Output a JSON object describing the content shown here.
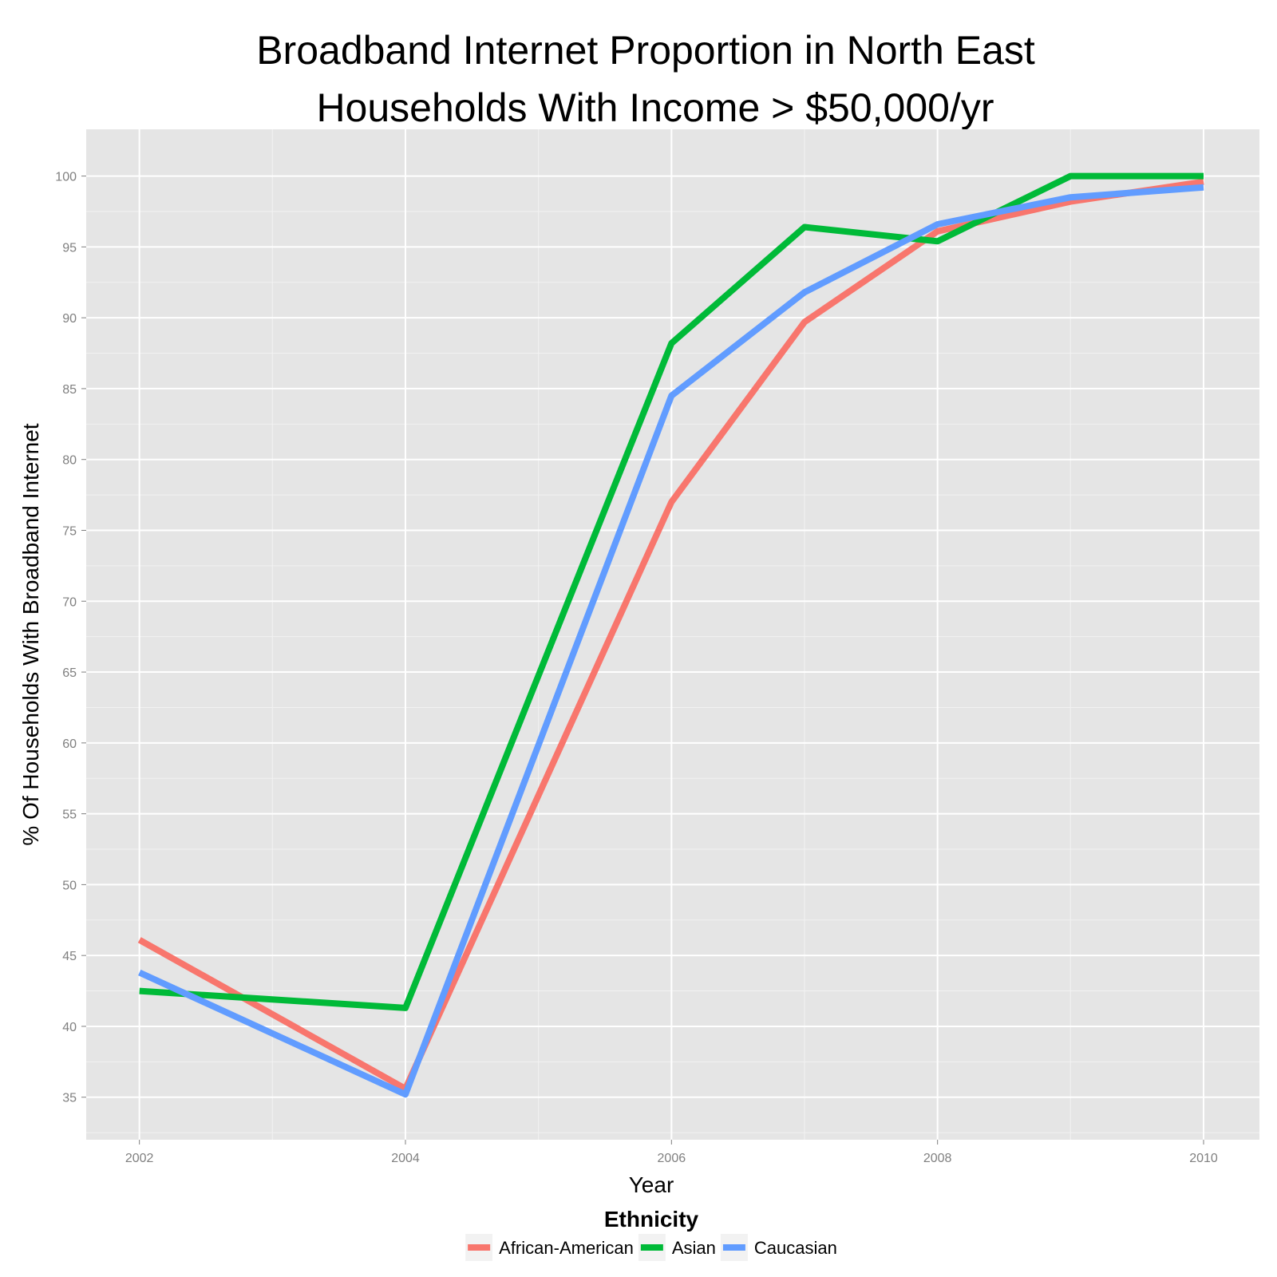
{
  "chart_data": {
    "type": "line",
    "title_lines": [
      "Broadband Internet Proportion in North East",
      "Households With Income > $50,000/yr"
    ],
    "xlabel": "Year",
    "ylabel": "% Of Households With Broadband Internet",
    "x": [
      2002,
      2004,
      2006,
      2007,
      2008,
      2009,
      2010
    ],
    "xticks": [
      2002,
      2004,
      2006,
      2008,
      2010
    ],
    "xlim": [
      2001.6,
      2010.42
    ],
    "yticks": [
      35,
      40,
      45,
      50,
      55,
      60,
      65,
      70,
      75,
      80,
      85,
      90,
      95,
      100
    ],
    "ylim": [
      32.0,
      103.3
    ],
    "grid": true,
    "legend_position": "bottom",
    "legend_title": "Ethnicity",
    "series": [
      {
        "name": "African-American",
        "color": "#F8766D",
        "values": [
          46.1,
          35.6,
          77.0,
          89.7,
          96.1,
          98.2,
          99.6
        ]
      },
      {
        "name": "Asian",
        "color": "#00BA38",
        "values": [
          42.5,
          41.3,
          88.2,
          96.4,
          95.4,
          100.0,
          100.0
        ]
      },
      {
        "name": "Caucasian",
        "color": "#619CFF",
        "values": [
          43.8,
          35.2,
          84.5,
          91.8,
          96.6,
          98.5,
          99.2
        ]
      }
    ],
    "colors": {
      "panel_background": "#E5E5E5",
      "grid_major": "#FFFFFF",
      "grid_minor": "#F2F2F2"
    }
  }
}
